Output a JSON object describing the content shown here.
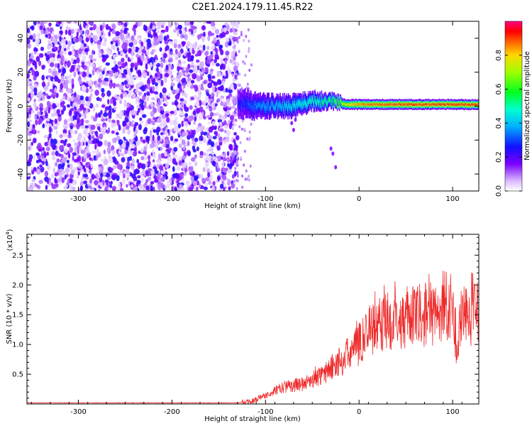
{
  "title": "C2E1.2024.179.11.45.R22",
  "chart_data": [
    {
      "type": "heatmap",
      "xlabel": "Height of straight line (km)",
      "ylabel": "Frequency (Hz)",
      "xlim": [
        -355,
        128
      ],
      "ylim": [
        -50,
        50
      ],
      "xticks": [
        -300,
        -200,
        -100,
        0,
        100
      ],
      "yticks": [
        -40,
        -20,
        0,
        20,
        40
      ],
      "colorbar": {
        "label": "Normalized spectral amplitude",
        "range": [
          0,
          1
        ],
        "ticks": [
          "0.0",
          "0.2",
          "0.4",
          "0.6",
          "0.8"
        ],
        "colormap": "rainbow (white-purple-blue-cyan-green-yellow-red-magenta)"
      },
      "noise_region": {
        "x": [
          -355,
          -130
        ],
        "y": [
          -50,
          50
        ],
        "level": "0.0-0.25"
      },
      "signal_band": [
        {
          "x": -130,
          "freq": 2,
          "width": 8,
          "level": 0.25
        },
        {
          "x": -110,
          "freq": 0,
          "width": 7,
          "level": 0.35
        },
        {
          "x": -90,
          "freq": 0,
          "width": 6,
          "level": 0.4
        },
        {
          "x": -70,
          "freq": 0,
          "width": 6,
          "level": 0.45
        },
        {
          "x": -50,
          "freq": 3,
          "width": 5,
          "level": 0.5
        },
        {
          "x": -30,
          "freq": 3,
          "width": 4,
          "level": 0.55
        },
        {
          "x": -15,
          "freq": 1,
          "width": 3,
          "level": 0.75
        },
        {
          "x": 0,
          "freq": 1,
          "width": 3,
          "level": 0.85
        },
        {
          "x": 50,
          "freq": 1,
          "width": 3,
          "level": 0.9
        },
        {
          "x": 100,
          "freq": 1,
          "width": 3,
          "level": 0.9
        },
        {
          "x": 128,
          "freq": 1,
          "width": 3,
          "level": 0.9
        }
      ]
    },
    {
      "type": "line",
      "xlabel": "Height of straight line (km)",
      "ylabel": "SNR (10 * v/v)",
      "scale_label": "(x10",
      "scale_exp": "4",
      "scale_close": ")",
      "xlim": [
        -355,
        128
      ],
      "ylim": [
        0,
        2.85
      ],
      "xticks": [
        -300,
        -200,
        -100,
        0,
        100
      ],
      "yticks": [
        "0.5",
        "1.0",
        "1.5",
        "2.0",
        "2.5"
      ],
      "color": "#ee2b2b",
      "series": [
        {
          "x": [
            -355,
            -130,
            -115,
            -100,
            -80,
            -60,
            -40,
            -20,
            -5,
            0,
            10,
            30,
            50,
            70,
            90,
            100,
            103,
            105,
            107,
            110,
            128
          ],
          "y": [
            0.02,
            0.02,
            0.05,
            0.15,
            0.3,
            0.35,
            0.5,
            0.75,
            0.95,
            1.05,
            1.3,
            1.45,
            1.5,
            1.55,
            1.6,
            1.55,
            1.2,
            0.7,
            1.3,
            1.6,
            1.55
          ]
        }
      ]
    }
  ]
}
